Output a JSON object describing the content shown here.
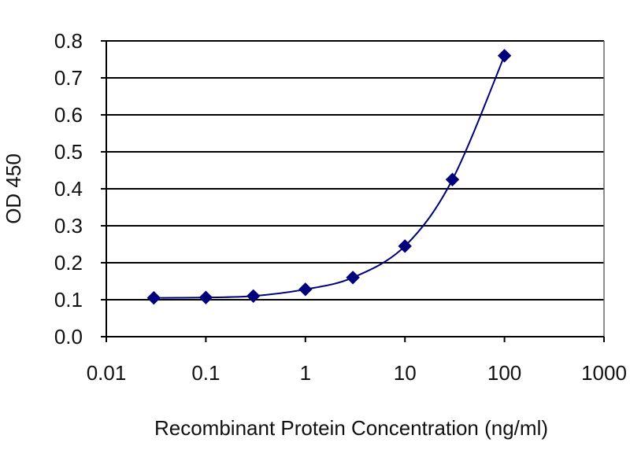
{
  "chart_data": {
    "type": "scatter",
    "x_scale": "log",
    "xlabel": "Recombinant Protein Concentration (ng/ml)",
    "ylabel": "OD 450",
    "xlim": [
      0.01,
      1000
    ],
    "ylim": [
      0.0,
      0.8
    ],
    "x_ticks": [
      0.01,
      0.1,
      1,
      10,
      100,
      1000
    ],
    "x_tick_labels": [
      "0.01",
      "0.1",
      "1",
      "10",
      "100",
      "1000"
    ],
    "y_ticks": [
      0.0,
      0.1,
      0.2,
      0.3,
      0.4,
      0.5,
      0.6,
      0.7,
      0.8
    ],
    "y_tick_labels": [
      "0.0",
      "0.1",
      "0.2",
      "0.3",
      "0.4",
      "0.5",
      "0.6",
      "0.7",
      "0.8"
    ],
    "grid": "horizontal",
    "series": [
      {
        "x": [
          0.03,
          0.1,
          0.3,
          1,
          3,
          10,
          30,
          100
        ],
        "y": [
          0.105,
          0.106,
          0.11,
          0.128,
          0.16,
          0.245,
          0.425,
          0.76
        ],
        "marker": "diamond",
        "line": "smooth"
      }
    ],
    "colors": {
      "series": "#00007a",
      "grid": "#000000",
      "axis": "#000000"
    }
  }
}
